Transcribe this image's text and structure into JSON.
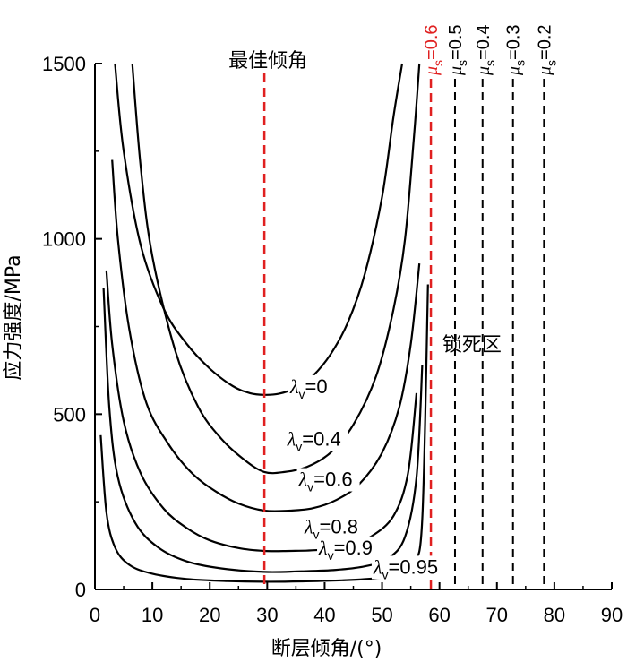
{
  "chart_data": {
    "type": "line",
    "xlabel": "断层倾角/(°)",
    "ylabel": "应力强度/MPa",
    "xlim": [
      0,
      90
    ],
    "ylim": [
      0,
      1500
    ],
    "xticks": [
      0,
      10,
      20,
      30,
      40,
      50,
      60,
      70,
      80,
      90
    ],
    "yticks": [
      0,
      500,
      1000,
      1500
    ],
    "optimal_angle_label": "最佳倾角",
    "optimal_angle": 29.5,
    "lock_zone_label": "锁死区",
    "series": [
      {
        "name": "λv=0",
        "lambda_v": "0",
        "x": [
          3.5,
          5,
          8,
          12,
          16,
          20,
          24,
          27,
          29.5,
          32,
          35,
          38,
          41,
          44,
          47,
          50,
          52,
          53.5
        ],
        "y": [
          1500,
          1250,
          980,
          800,
          700,
          630,
          580,
          560,
          555,
          558,
          575,
          610,
          670,
          760,
          900,
          1120,
          1350,
          1500
        ]
      },
      {
        "name": "λv=0.4",
        "lambda_v": "0.4",
        "x": [
          6.5,
          8,
          10,
          14,
          18,
          22,
          26,
          29.5,
          33,
          37,
          41,
          45,
          49,
          52,
          54,
          55.5,
          56.5
        ],
        "y": [
          1500,
          1200,
          950,
          680,
          520,
          430,
          370,
          335,
          335,
          350,
          390,
          470,
          610,
          800,
          1000,
          1280,
          1500
        ]
      },
      {
        "name": "λv=0.6",
        "lambda_v": "0.6",
        "x": [
          3,
          4,
          6,
          9,
          13,
          17,
          21,
          25,
          29.5,
          34,
          38,
          42,
          46,
          50,
          53,
          55,
          56.5
        ],
        "y": [
          1225,
          1000,
          740,
          530,
          410,
          330,
          280,
          245,
          225,
          225,
          232,
          255,
          300,
          390,
          520,
          700,
          930
        ]
      },
      {
        "name": "λv=0.8",
        "lambda_v": "0.8",
        "x": [
          2,
          3,
          5,
          8,
          12,
          16,
          20,
          25,
          29.5,
          34,
          39,
          44,
          48,
          52,
          54.5,
          56
        ],
        "y": [
          910,
          700,
          480,
          330,
          230,
          175,
          140,
          118,
          110,
          110,
          113,
          125,
          150,
          210,
          330,
          560
        ]
      },
      {
        "name": "λv=0.9",
        "lambda_v": "0.9",
        "x": [
          1.5,
          2.5,
          4,
          7,
          11,
          16,
          22,
          29.5,
          36,
          42,
          47,
          51,
          54,
          56,
          57
        ],
        "y": [
          860,
          520,
          320,
          190,
          120,
          80,
          60,
          50,
          52,
          56,
          66,
          88,
          150,
          320,
          640
        ]
      },
      {
        "name": "λv=0.95",
        "lambda_v": "0.95",
        "x": [
          1,
          2,
          3.5,
          6,
          10,
          16,
          23,
          29.5,
          36,
          43,
          49,
          53,
          55.5,
          57,
          58
        ],
        "y": [
          440,
          220,
          120,
          70,
          45,
          30,
          24,
          22,
          23,
          26,
          32,
          45,
          80,
          200,
          870
        ]
      }
    ],
    "friction_lines": [
      {
        "label_mu": "μ",
        "label_sub": "s",
        "label_val": "=0.6",
        "x": 58.5,
        "color": "#e02020",
        "highlight": true
      },
      {
        "label_mu": "μ",
        "label_sub": "s",
        "label_val": "=0.5",
        "x": 62.7,
        "color": "#000000",
        "highlight": false
      },
      {
        "label_mu": "μ",
        "label_sub": "s",
        "label_val": "=0.4",
        "x": 67.5,
        "color": "#000000",
        "highlight": false
      },
      {
        "label_mu": "μ",
        "label_sub": "s",
        "label_val": "=0.3",
        "x": 72.8,
        "color": "#000000",
        "highlight": false
      },
      {
        "label_mu": "μ",
        "label_sub": "s",
        "label_val": "=0.2",
        "x": 78.2,
        "color": "#000000",
        "highlight": false
      }
    ],
    "curve_labels": [
      {
        "series": "λv=0",
        "lam": "λ",
        "sub": "v",
        "text": "=0",
        "at": [
          34,
          560
        ]
      },
      {
        "series": "λv=0.4",
        "lam": "λ",
        "sub": "v",
        "text": "=0.4",
        "at": [
          33.5,
          410
        ]
      },
      {
        "series": "λv=0.6",
        "lam": "λ",
        "sub": "v",
        "text": "=0.6",
        "at": [
          35.5,
          295
        ]
      },
      {
        "series": "λv=0.8",
        "lam": "λ",
        "sub": "v",
        "text": "=0.8",
        "at": [
          36.5,
          160
        ]
      },
      {
        "series": "λv=0.9",
        "lam": "λ",
        "sub": "v",
        "text": "=0.9",
        "at": [
          39,
          100
        ]
      },
      {
        "series": "λv=0.95",
        "lam": "λ",
        "sub": "v",
        "text": "=0.95",
        "at": [
          48.5,
          45
        ]
      }
    ]
  }
}
